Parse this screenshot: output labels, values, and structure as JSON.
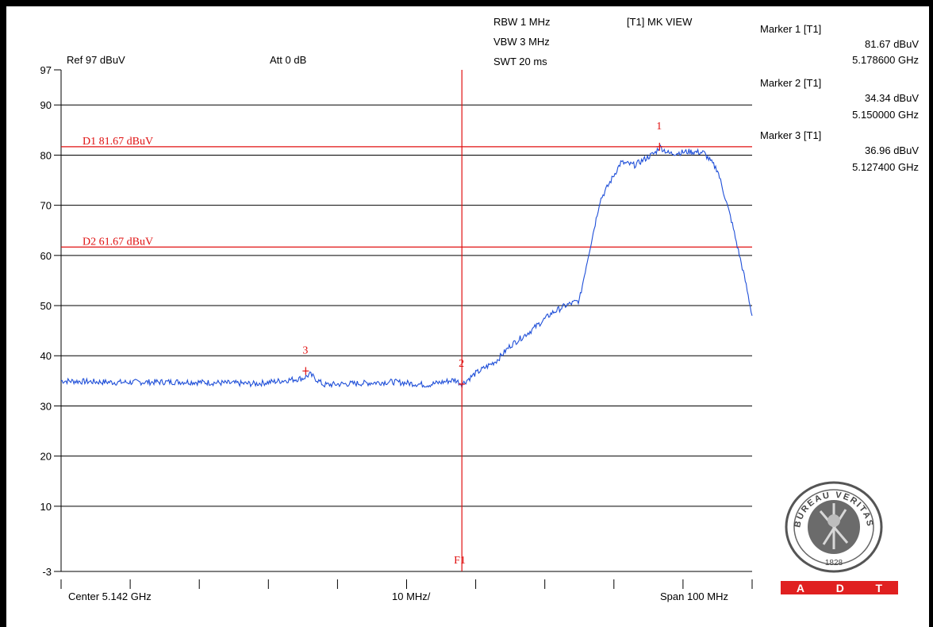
{
  "header": {
    "rbw": "RBW 1 MHz",
    "vbw": "VBW 3 MHz",
    "swt": "SWT 20 ms",
    "view": "[T1] MK VIEW",
    "ref": "Ref 97 dBuV",
    "att": "Att  0 dB"
  },
  "markers": [
    {
      "title": "Marker 1 [T1]",
      "level": "81.67 dBuV",
      "freq": "5.178600 GHz"
    },
    {
      "title": "Marker 2 [T1]",
      "level": "34.34 dBuV",
      "freq": "5.150000 GHz"
    },
    {
      "title": "Marker 3 [T1]",
      "level": "36.96 dBuV",
      "freq": "5.127400 GHz"
    }
  ],
  "footer": {
    "center": "Center 5.142 GHz",
    "div": "10 MHz/",
    "span": "Span 100 MHz"
  },
  "logo": {
    "text": "BUREAU VERITAS",
    "year": "1828",
    "band": [
      "A",
      "D",
      "T"
    ]
  },
  "colors": {
    "trace": "#1f4fd8",
    "display_line": "#e01010",
    "grid": "#000000",
    "band": "#e02020"
  },
  "chart_data": {
    "type": "line",
    "x_unit": "GHz",
    "y_unit": "dBuV",
    "xlim": [
      5.092,
      5.192
    ],
    "ylim": [
      -3,
      97
    ],
    "y_ticks": [
      97,
      90,
      80,
      70,
      60,
      50,
      40,
      30,
      20,
      10,
      -3
    ],
    "grid": true,
    "series": [
      {
        "x": [
          5.092,
          5.1,
          5.11,
          5.12,
          5.127,
          5.128,
          5.13,
          5.14,
          5.145,
          5.149,
          5.15,
          5.152,
          5.155,
          5.157,
          5.16,
          5.163,
          5.165,
          5.167,
          5.168,
          5.17,
          5.173,
          5.175,
          5.178,
          5.1786,
          5.18,
          5.183,
          5.185,
          5.187,
          5.189,
          5.191,
          5.192
        ],
        "y": [
          35,
          34.7,
          34.8,
          34.4,
          35.5,
          36.3,
          34.2,
          34.8,
          34.2,
          35.2,
          34.34,
          36.5,
          39,
          42,
          45,
          48.5,
          50,
          51,
          58,
          71,
          78.5,
          78,
          80.5,
          81.67,
          80.3,
          80.7,
          80.5,
          77,
          67,
          55,
          48
        ]
      }
    ],
    "display_lines": [
      {
        "label": "D1 81.67 dBuV",
        "value": 81.67
      },
      {
        "label": "D2 61.67 dBuV",
        "value": 61.67
      }
    ],
    "frequency_line": {
      "label": "F1",
      "x": 5.15
    },
    "markers": [
      {
        "label": "1",
        "x": 5.1786,
        "y": 81.67
      },
      {
        "label": "2",
        "x": 5.15,
        "y": 34.34
      },
      {
        "label": "3",
        "x": 5.1274,
        "y": 36.96
      }
    ]
  }
}
